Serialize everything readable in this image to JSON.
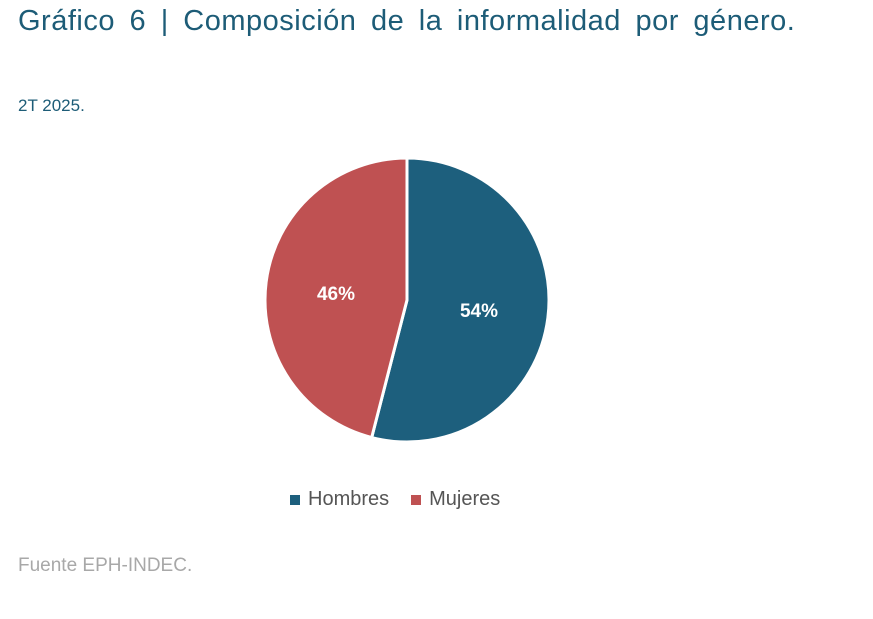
{
  "header": {
    "title": "Gráfico 6 | Composición de la informalidad por género.",
    "subtitle": "2T 2025."
  },
  "colors": {
    "title": "#1d5c77",
    "hombres": "#1d5f7d",
    "mujeres": "#bf5152",
    "source": "#a8a8a8"
  },
  "legend": {
    "items": [
      {
        "label": "Hombres",
        "color": "#1d5f7d"
      },
      {
        "label": "Mujeres",
        "color": "#bf5152"
      }
    ]
  },
  "labels": {
    "hombres": "54%",
    "mujeres": "46%"
  },
  "footer": {
    "source": "Fuente EPH-INDEC."
  },
  "chart_data": {
    "type": "pie",
    "title": "Gráfico 6 | Composición de la informalidad por género.",
    "subtitle": "2T 2025.",
    "categories": [
      "Hombres",
      "Mujeres"
    ],
    "values": [
      54,
      46
    ],
    "unit": "%",
    "colors": [
      "#1d5f7d",
      "#bf5152"
    ],
    "start_angle": "12 o'clock, clockwise",
    "legend_position": "bottom",
    "data_labels": [
      "54%",
      "46%"
    ],
    "source": "Fuente EPH-INDEC."
  }
}
